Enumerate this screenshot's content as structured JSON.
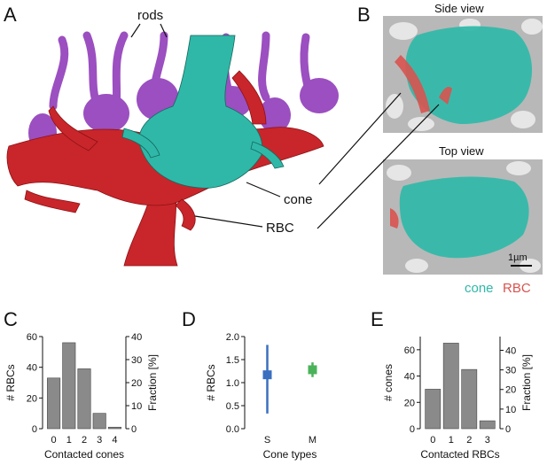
{
  "panels": {
    "a": {
      "letter": "A",
      "labels": {
        "rods": "rods",
        "cone": "cone",
        "rbc": "RBC"
      }
    },
    "b": {
      "letter": "B",
      "side_title": "Side view",
      "top_title": "Top view",
      "scale_bar": "1µm",
      "legend_cone": "cone",
      "legend_rbc": "RBC",
      "colors": {
        "cone": "#2fb8a8",
        "rbc": "#d9534f"
      }
    }
  },
  "chart_data": [
    {
      "panel": "C",
      "type": "bar",
      "categories": [
        "0",
        "1",
        "2",
        "3",
        "4"
      ],
      "values": [
        33,
        56,
        39,
        10,
        1
      ],
      "xlabel": "Contacted cones",
      "ylabel": "# RBCs",
      "ylabel_right": "Fraction [%]",
      "ylim": [
        0,
        60
      ],
      "yticks": [
        "0",
        "20",
        "40",
        "60"
      ],
      "ylim_right": [
        0,
        40
      ],
      "yticks_right": [
        "0",
        "10",
        "20",
        "30",
        "40"
      ],
      "bar_color": "#8a8a8a"
    },
    {
      "panel": "D",
      "type": "scatter",
      "categories": [
        "S",
        "M"
      ],
      "values": [
        1.17,
        1.28
      ],
      "error_low": [
        0.33,
        1.12
      ],
      "error_high": [
        1.82,
        1.44
      ],
      "colors": [
        "#3a6fc0",
        "#4ab35a"
      ],
      "xlabel": "Cone types",
      "ylabel": "# RBCs",
      "ylim": [
        0,
        2
      ],
      "yticks": [
        "0.0",
        "0.5",
        "1.0",
        "1.5",
        "2.0"
      ]
    },
    {
      "panel": "E",
      "type": "bar",
      "categories": [
        "0",
        "1",
        "2",
        "3"
      ],
      "values": [
        30,
        65,
        45,
        6
      ],
      "xlabel": "Contacted RBCs",
      "ylabel": "# cones",
      "ylabel_right": "Fraction [%]",
      "ylim": [
        0,
        70
      ],
      "yticks": [
        "0",
        "20",
        "40",
        "60"
      ],
      "ylim_right": [
        0,
        47
      ],
      "yticks_right": [
        "0",
        "10",
        "20",
        "30",
        "40"
      ],
      "bar_color": "#8a8a8a"
    }
  ]
}
